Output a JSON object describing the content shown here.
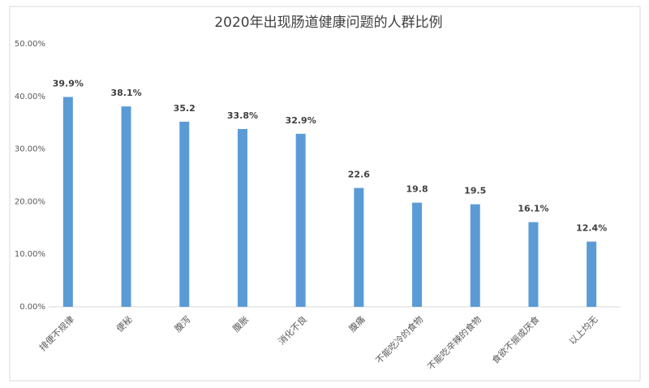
{
  "chart_data": {
    "type": "bar",
    "title": "2020年出现肠道健康问题的人群比例",
    "categories": [
      "排便不规律",
      "便秘",
      "腹泻",
      "腹胀",
      "消化不良",
      "腹痛",
      "不能吃冷的食物",
      "不能吃辛辣的食物",
      "食欲不振或厌食",
      "以上均无"
    ],
    "values": [
      39.9,
      38.1,
      35.2,
      33.8,
      32.9,
      22.6,
      19.8,
      19.5,
      16.1,
      12.4
    ],
    "value_labels": [
      "39.9%",
      "38.1%",
      "35.2",
      "33.8%",
      "32.9%",
      "22.6",
      "19.8",
      "19.5",
      "16.1%",
      "12.4%"
    ],
    "color": "#5b9bd5",
    "ylim": [
      0,
      50
    ],
    "yticks": [
      {
        "value": 0,
        "label": "0.00%"
      },
      {
        "value": 10,
        "label": "10.00%"
      },
      {
        "value": 20,
        "label": "20.00%"
      },
      {
        "value": 30,
        "label": "30.00%"
      },
      {
        "value": 40,
        "label": "40.00%"
      },
      {
        "value": 50,
        "label": "50.00%"
      }
    ],
    "grid": false
  }
}
